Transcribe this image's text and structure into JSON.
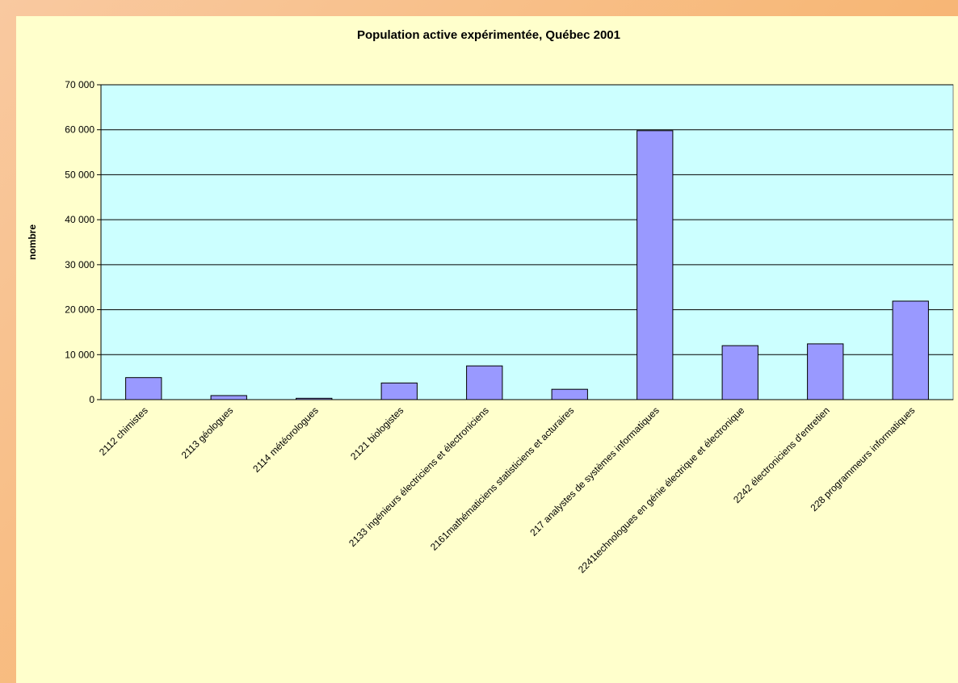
{
  "chart_data": {
    "type": "bar",
    "title": "Population active expérimentée, Québec 2001",
    "y_label": "nombre",
    "categories": [
      "2112 chimistes",
      "2113 géologues",
      "2114 météorologues",
      "2121 biologistes",
      "2133 ingénieurs électriciens et électroniciens",
      "2161mathématiciens statisticiens et acturaires",
      "217 analystes de systèmes informatiques",
      "2241technologues en génie électrique et électronique",
      "2242 électroniciens d'entretien",
      "228 programmeurs informatiques"
    ],
    "values": [
      4900,
      900,
      300,
      3700,
      7500,
      2300,
      59800,
      12000,
      12400,
      21900
    ],
    "color": "#9999ff",
    "ylim": [
      0,
      70000
    ],
    "yticks": [
      0,
      {
        "value": 10000,
        "label": "10 000"
      },
      {
        "value": 20000,
        "label": "20 000"
      },
      {
        "value": 30000,
        "label": "30 000"
      },
      {
        "value": 40000,
        "label": "40 000"
      },
      {
        "value": 50000,
        "label": "50 000"
      },
      {
        "value": 60000,
        "label": "60 000"
      },
      {
        "value": 70000,
        "label": "70 000"
      }
    ],
    "grid": true
  }
}
